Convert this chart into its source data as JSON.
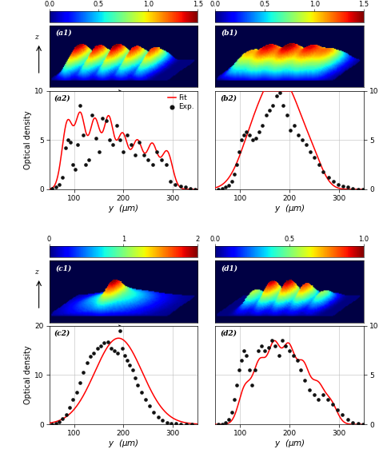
{
  "colorbar_a1_range": [
    0,
    1.5
  ],
  "colorbar_b1_range": [
    0,
    1.5
  ],
  "colorbar_c1_range": [
    0,
    2
  ],
  "colorbar_d1_range": [
    0,
    1
  ],
  "colorbar_a1_ticks": [
    0,
    0.5,
    1,
    1.5
  ],
  "colorbar_b1_ticks": [
    0,
    0.5,
    1,
    1.5
  ],
  "colorbar_c1_ticks": [
    0,
    1,
    2
  ],
  "colorbar_d1_ticks": [
    0,
    0.5,
    1
  ],
  "xlabel": "y  ($\\mu$m)",
  "ylabel_left": "Optical density",
  "xticks": [
    100,
    200,
    300
  ],
  "a2_yticks": [
    0,
    5,
    10
  ],
  "b2_yticks": [
    0,
    5,
    10
  ],
  "c2_yticks": [
    0,
    10,
    20
  ],
  "d2_yticks": [
    0,
    5,
    10
  ],
  "a2_ylim": [
    0,
    10
  ],
  "b2_ylim": [
    0,
    10
  ],
  "c2_ylim": [
    0,
    20
  ],
  "d2_ylim": [
    0,
    10
  ],
  "xlim": [
    50,
    350
  ],
  "fit_color": "#ff0000",
  "exp_color": "#111111",
  "grid_color": "#bbbbbb",
  "bg_surface": "#00006e",
  "labels": [
    "(a1)",
    "(b1)",
    "(c1)",
    "(d1)",
    "(a2)",
    "(b2)",
    "(c2)",
    "(d2)"
  ]
}
